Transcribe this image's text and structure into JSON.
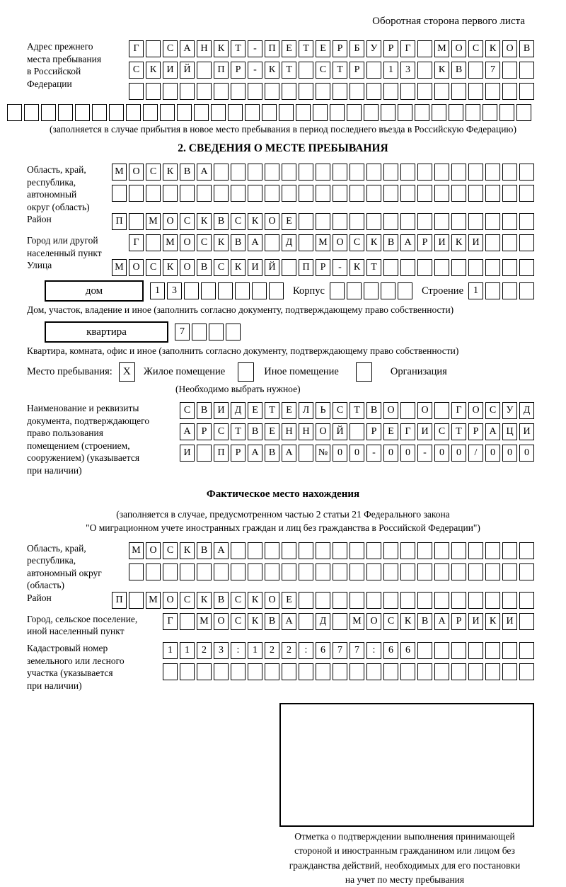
{
  "page": {
    "header_note": "Оборотная сторона первого листа"
  },
  "prev_address": {
    "label": "Адрес прежнего\nместа пребывания\nв Российской\nФедерации",
    "rows": [
      {
        "len": 24,
        "text": "Г САНКТ-ПЕТЕРБУРГ МОСКОВ"
      },
      {
        "len": 24,
        "text": "СКИЙ ПР-КТ СТР 13 КВ 7"
      },
      {
        "len": 24,
        "text": ""
      },
      {
        "len": 31,
        "text": ""
      }
    ],
    "note": "(заполняется в случае прибытия в новое место пребывания в период последнего въезда в Российскую Федерацию)"
  },
  "section2": {
    "title": "2. СВЕДЕНИЯ О МЕСТЕ ПРЕБЫВАНИЯ",
    "region": {
      "label": "Область, край,\nреспублика,\nавтономный\nокруг (область)",
      "rows": [
        {
          "len": 25,
          "text": "МОСКВА"
        },
        {
          "len": 25,
          "text": ""
        }
      ]
    },
    "district": {
      "label": "Район",
      "row": {
        "len": 25,
        "text": "П МОСКВСКОЕ"
      }
    },
    "city": {
      "label": "Город или другой\nнаселенный пункт",
      "row": {
        "len": 24,
        "text": "Г МОСКВА Д МОСКВАРИКИ"
      }
    },
    "street": {
      "label": "Улица",
      "row": {
        "len": 25,
        "text": "МОСКОВСКИЙ ПР-КТ"
      }
    },
    "house": {
      "label": "дом",
      "row": {
        "len": 8,
        "text": "13"
      },
      "korpus_label": "Корпус",
      "korpus_row": {
        "len": 5,
        "text": ""
      },
      "stroenie_label": "Строение",
      "stroenie_row": {
        "len": 4,
        "text": "1"
      }
    },
    "house_note": "Дом, участок, владение и иное (заполнить согласно документу, подтверждающему право собственности)",
    "apartment": {
      "label": "квартира",
      "row": {
        "len": 4,
        "text": "7"
      }
    },
    "apartment_note": "Квартира, комната, офис и иное (заполнить согласно документу, подтверждающему право собственности)",
    "stay_type": {
      "label": "Место пребывания:",
      "options": [
        {
          "label": "Жилое помещение",
          "value": "X"
        },
        {
          "label": "Иное помещение",
          "value": ""
        },
        {
          "label": "Организация",
          "value": ""
        }
      ],
      "note": "(Необходимо выбрать нужное)"
    },
    "document": {
      "label": "Наименование и реквизиты\nдокумента, подтверждающего\nправо пользования\nпомещением (строением,\nсооружением) (указывается\nпри наличии)",
      "rows": [
        {
          "len": 21,
          "text": "СВИДЕТЕЛЬСТВО О ГОСУД"
        },
        {
          "len": 21,
          "text": "АРСТВЕННОЙ РЕГИСТРАЦИ"
        },
        {
          "len": 21,
          "text": "И ПРАВА №00-00-00/000"
        }
      ]
    }
  },
  "actual_location": {
    "title": "Фактическое место нахождения",
    "note1": "(заполняется в случае, предусмотренном частью 2 статьи 21 Федерального закона",
    "note2": "\"О миграционном учете иностранных граждан и лиц без гражданства в Российской Федерации\")",
    "region": {
      "label": "Область, край,\nреспублика,\nавтономный округ\n(область)",
      "rows": [
        {
          "len": 24,
          "text": "МОСКВА"
        },
        {
          "len": 24,
          "text": ""
        }
      ]
    },
    "district": {
      "label": "Район",
      "row": {
        "len": 25,
        "text": "П МОСКВСКОЕ"
      }
    },
    "city": {
      "label": "Город, сельское поселение,\nиной населенный пункт",
      "row": {
        "len": 22,
        "text": "Г МОСКВА Д МОСКВАРИКИ"
      }
    },
    "cadastral": {
      "label": "Кадастровый номер\nземельного или лесного\nучастка (указывается\nпри наличии)",
      "rows": [
        {
          "len": 22,
          "text": "1123:122:677:66"
        },
        {
          "len": 22,
          "text": ""
        }
      ]
    },
    "stamp_note": "Отметка о подтверждении выполнения принимающей\nстороной и иностранным гражданином или лицом без\nгражданства действий, необходимых для его постановки\nна учет по месту пребывания"
  }
}
